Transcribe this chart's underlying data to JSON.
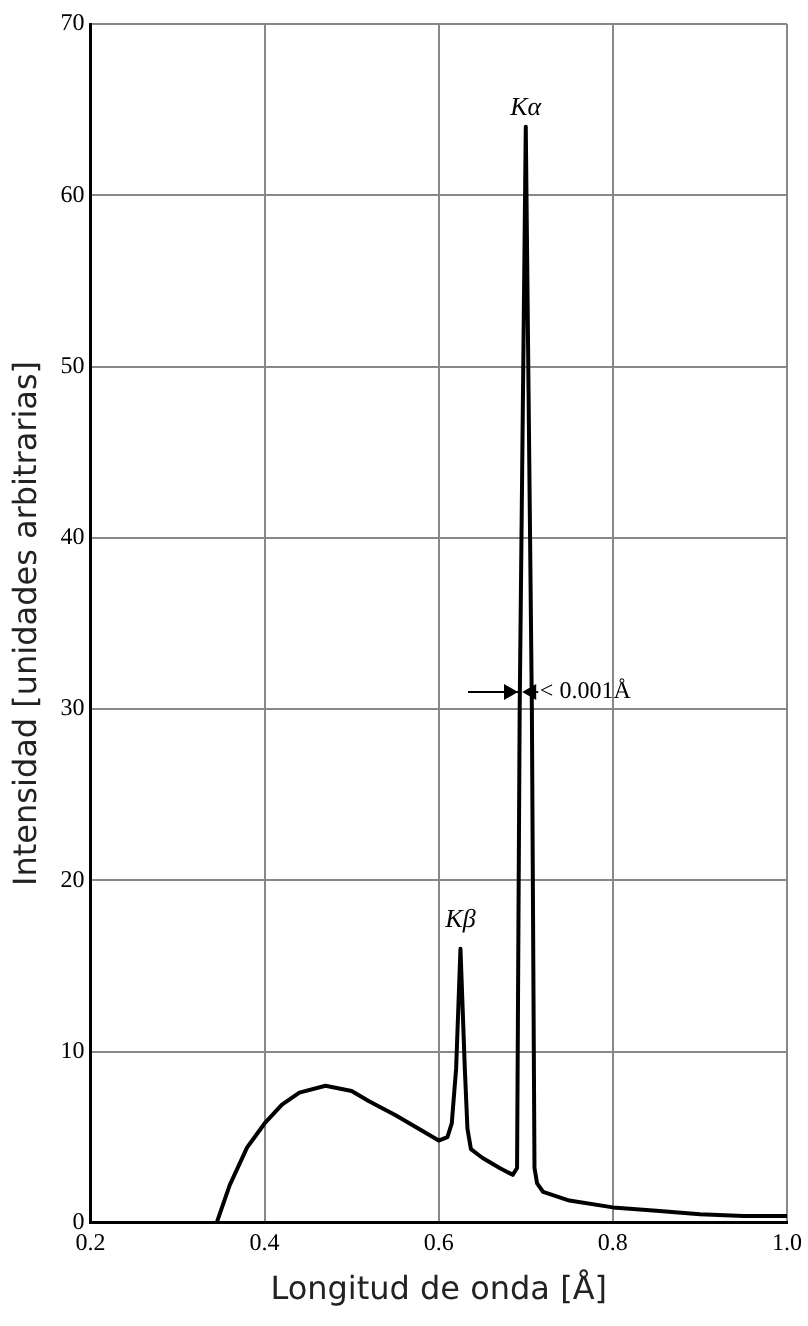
{
  "chart_data": {
    "type": "line",
    "xlabel": "Longitud de onda [Å]",
    "ylabel": "Intensidad [unidades arbitrarias]",
    "x": [
      0.345,
      0.36,
      0.38,
      0.4,
      0.42,
      0.44,
      0.47,
      0.5,
      0.52,
      0.55,
      0.58,
      0.6,
      0.61,
      0.615,
      0.62,
      0.625,
      0.63,
      0.633,
      0.637,
      0.65,
      0.67,
      0.685,
      0.69,
      0.693,
      0.7,
      0.707,
      0.71,
      0.713,
      0.72,
      0.75,
      0.8,
      0.85,
      0.9,
      0.95,
      1.0
    ],
    "series": [
      {
        "color": "#000000",
        "values": [
          0,
          2.2,
          4.4,
          5.8,
          6.9,
          7.6,
          8,
          7.7,
          7.1,
          6.3,
          5.4,
          4.8,
          5.0,
          5.8,
          9,
          16,
          9,
          5.5,
          4.3,
          3.8,
          3.2,
          2.8,
          3.2,
          30,
          64,
          30,
          3.2,
          2.3,
          1.8,
          1.3,
          0.9,
          0.7,
          0.5,
          0.4,
          0.4
        ]
      }
    ],
    "xlim": [
      0.2,
      1.0
    ],
    "xticks": [
      0.2,
      0.4,
      0.6,
      0.8,
      {
        "value": 1.0,
        "label": "1.0"
      }
    ],
    "ylim": [
      0,
      70
    ],
    "yticks": [
      0,
      10,
      20,
      30,
      40,
      50,
      60,
      70
    ],
    "grid": true,
    "marker": "none",
    "line_style": "solid",
    "annotations": [
      {
        "text": "Kα",
        "x": 0.7,
        "y": 64
      },
      {
        "text": "Kβ",
        "x": 0.625,
        "y": 16
      },
      {
        "text": "< 0.001Å",
        "x": 0.707,
        "y": 31
      }
    ]
  }
}
